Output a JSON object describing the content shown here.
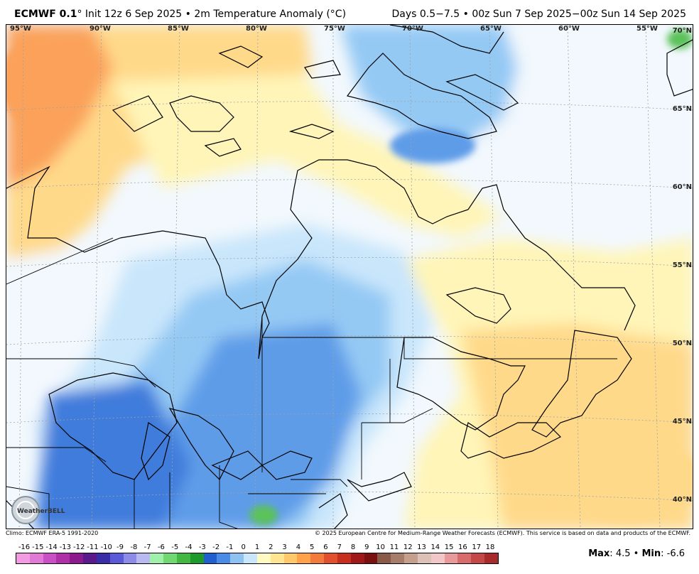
{
  "header": {
    "model": "ECMWF 0.1",
    "degree_mark": "°",
    "init": "Init 12z 6 Sep 2025",
    "bullet": "•",
    "field": "2m Temperature Anomaly (°C)",
    "range": "Days 0.5−7.5 • 00z Sun 7 Sep 2025−00z Sun 14 Sep 2025"
  },
  "map": {
    "lon_labels": [
      "95°W",
      "90°W",
      "85°W",
      "80°W",
      "75°W",
      "70°W",
      "65°W",
      "60°W",
      "55°W"
    ],
    "lat_labels": [
      "70°N",
      "65°N",
      "60°N",
      "55°N",
      "50°N",
      "45°N",
      "40°N"
    ],
    "colors": {
      "ocean_neutral": "#f2f8fd",
      "warm_light": "#fff5b8",
      "warm_mid": "#ffd98a",
      "warm_strong": "#fba15a",
      "cool_light": "#c9e6fb",
      "cool_mid": "#94c9f4",
      "cool_strong": "#5f9ce8",
      "cool_deep": "#3f7bdb",
      "green": "#5cc25a",
      "border": "#000000"
    }
  },
  "footer": {
    "climo": "Climo: ECMWF ERA-5 1991-2020",
    "copyright": "© 2025 European Centre for Medium-Range Weather Forecasts (ECMWF). This service is based on data and products of the ECMWF.",
    "logo_text": "WeatherBELL"
  },
  "colorbar": {
    "ticks": [
      "-16",
      "-15",
      "-14",
      "-13",
      "-12",
      "-11",
      "-10",
      "-9",
      "-8",
      "-7",
      "-6",
      "-5",
      "-4",
      "-3",
      "-2",
      "-1",
      "0",
      "1",
      "2",
      "3",
      "4",
      "5",
      "6",
      "7",
      "8",
      "9",
      "10",
      "11",
      "12",
      "13",
      "14",
      "15",
      "16",
      "17",
      "18"
    ],
    "colors": [
      "#f29be3",
      "#e07ad6",
      "#c94fc6",
      "#b02ea8",
      "#8c1a8c",
      "#5b1a8c",
      "#3a2ea8",
      "#5a5ad8",
      "#8c8ce8",
      "#b9b9f2",
      "#9ff0a8",
      "#6fd870",
      "#42b842",
      "#1c9b2a",
      "#1f5fd0",
      "#4a8be6",
      "#8ec2f2",
      "#c9e6fb",
      "#fff9c4",
      "#ffe58f",
      "#ffc86a",
      "#ffa24a",
      "#f27a3a",
      "#e0502c",
      "#c62e1e",
      "#a01818",
      "#7a1010",
      "#8a5a48",
      "#a67c6a",
      "#c49f8e",
      "#dcc2b6",
      "#f2c7c7",
      "#e89a9a",
      "#d86c6c",
      "#c44848",
      "#a82a2a"
    ]
  },
  "stats": {
    "max_label": "Max",
    "max_value": "4.5",
    "separator": "•",
    "min_label": "Min",
    "min_value": "-6.6"
  }
}
